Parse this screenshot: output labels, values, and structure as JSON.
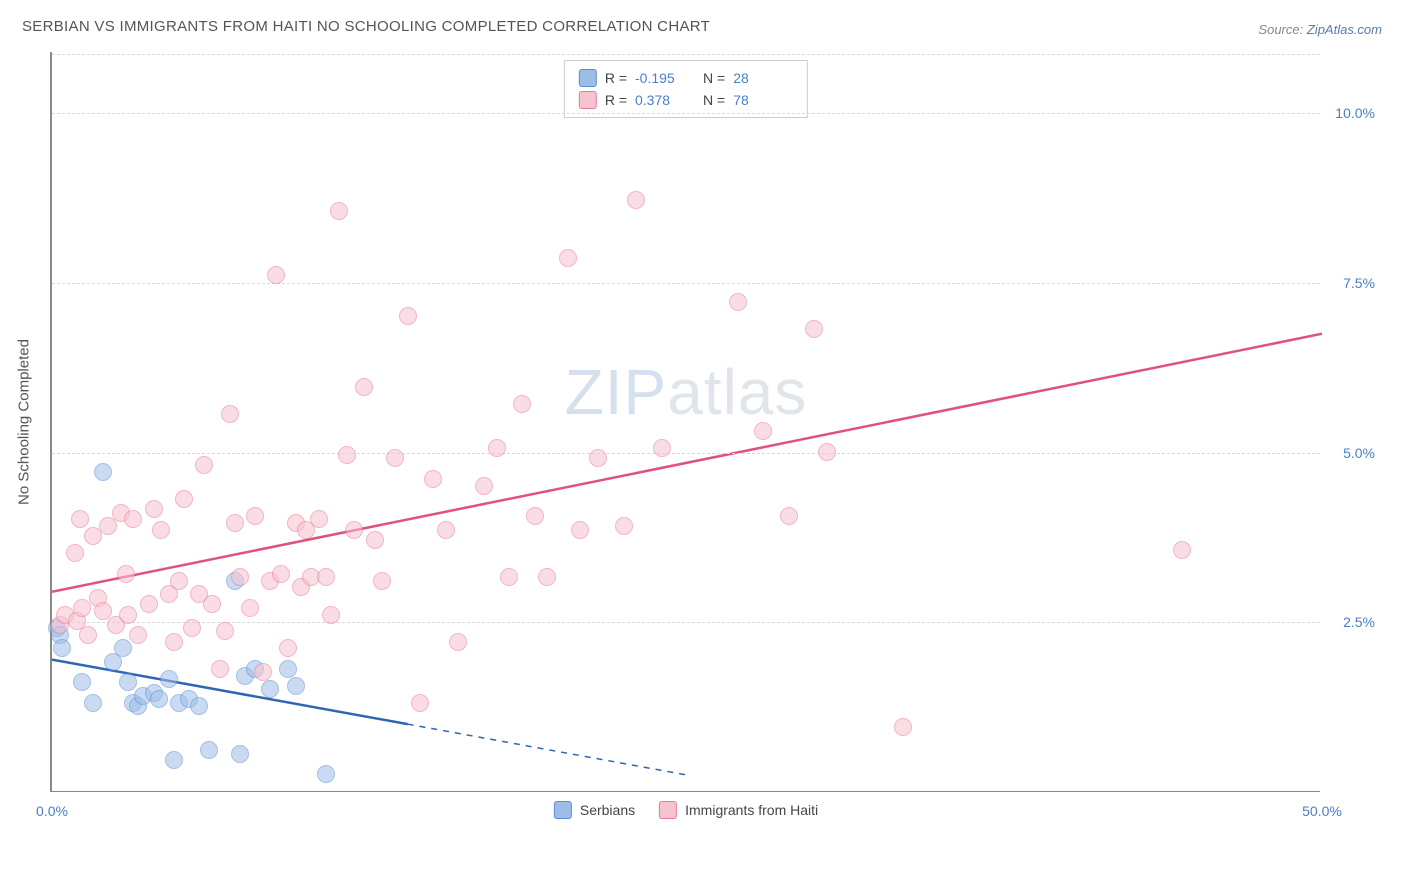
{
  "title": "SERBIAN VS IMMIGRANTS FROM HAITI NO SCHOOLING COMPLETED CORRELATION CHART",
  "source_label": "Source:",
  "source_link": "ZipAtlas.com",
  "watermark": {
    "bold": "ZIP",
    "thin": "atlas"
  },
  "chart": {
    "type": "scatter",
    "y_axis_title": "No Schooling Completed",
    "xlim": [
      0,
      50
    ],
    "ylim": [
      0,
      10.9
    ],
    "x_ticks": [
      0,
      50
    ],
    "x_tick_labels": [
      "0.0%",
      "50.0%"
    ],
    "y_ticks": [
      2.5,
      5.0,
      7.5,
      10.0
    ],
    "y_tick_labels": [
      "2.5%",
      "5.0%",
      "7.5%",
      "10.0%"
    ],
    "grid_color": "#d8d8d8",
    "background_color": "#ffffff",
    "axis_color": "#888888",
    "tick_label_color": "#4a7fc7",
    "marker_radius": 9,
    "marker_opacity": 0.55,
    "series": [
      {
        "name": "Serbians",
        "color_fill": "#9dbde8",
        "color_stroke": "#5b8ed1",
        "R": "-0.195",
        "N": "28",
        "trend": {
          "x1": 0,
          "y1": 1.95,
          "x2": 14,
          "y2": 1.0,
          "dash_to_x": 25,
          "dash_to_y": 0.25,
          "color": "#2d66b5",
          "width": 2.5
        },
        "points": [
          [
            0.2,
            2.4
          ],
          [
            0.3,
            2.3
          ],
          [
            0.4,
            2.1
          ],
          [
            2.0,
            4.7
          ],
          [
            2.4,
            1.9
          ],
          [
            1.2,
            1.6
          ],
          [
            1.6,
            1.3
          ],
          [
            2.8,
            2.1
          ],
          [
            3.0,
            1.6
          ],
          [
            3.2,
            1.3
          ],
          [
            3.4,
            1.25
          ],
          [
            3.6,
            1.4
          ],
          [
            4.0,
            1.45
          ],
          [
            4.2,
            1.35
          ],
          [
            4.6,
            1.65
          ],
          [
            5.0,
            1.3
          ],
          [
            5.4,
            1.35
          ],
          [
            5.8,
            1.25
          ],
          [
            6.2,
            0.6
          ],
          [
            7.2,
            3.1
          ],
          [
            7.6,
            1.7
          ],
          [
            8.0,
            1.8
          ],
          [
            8.6,
            1.5
          ],
          [
            9.3,
            1.8
          ],
          [
            9.6,
            1.55
          ],
          [
            4.8,
            0.45
          ],
          [
            7.4,
            0.55
          ],
          [
            10.8,
            0.25
          ]
        ]
      },
      {
        "name": "Immigrants from Haiti",
        "color_fill": "#f6c3ce",
        "color_stroke": "#e87a96",
        "R": "0.378",
        "N": "78",
        "trend": {
          "x1": 0,
          "y1": 2.95,
          "x2": 50,
          "y2": 6.75,
          "color": "#e0517c",
          "width": 2.5
        },
        "points": [
          [
            0.3,
            2.45
          ],
          [
            0.5,
            2.6
          ],
          [
            0.9,
            3.5
          ],
          [
            1.0,
            2.5
          ],
          [
            1.2,
            2.7
          ],
          [
            1.4,
            2.3
          ],
          [
            1.6,
            3.75
          ],
          [
            1.8,
            2.85
          ],
          [
            2.0,
            2.65
          ],
          [
            2.2,
            3.9
          ],
          [
            2.5,
            2.45
          ],
          [
            2.7,
            4.1
          ],
          [
            3.0,
            2.6
          ],
          [
            3.2,
            4.0
          ],
          [
            3.4,
            2.3
          ],
          [
            3.8,
            2.75
          ],
          [
            4.0,
            4.15
          ],
          [
            4.3,
            3.85
          ],
          [
            4.6,
            2.9
          ],
          [
            5.0,
            3.1
          ],
          [
            5.2,
            4.3
          ],
          [
            5.5,
            2.4
          ],
          [
            6.0,
            4.8
          ],
          [
            6.3,
            2.75
          ],
          [
            6.6,
            1.8
          ],
          [
            7.0,
            5.55
          ],
          [
            7.2,
            3.95
          ],
          [
            7.4,
            3.15
          ],
          [
            7.8,
            2.7
          ],
          [
            8.0,
            4.05
          ],
          [
            8.3,
            1.75
          ],
          [
            8.6,
            3.1
          ],
          [
            8.8,
            7.6
          ],
          [
            9.0,
            3.2
          ],
          [
            9.3,
            2.1
          ],
          [
            9.6,
            3.95
          ],
          [
            9.8,
            3.0
          ],
          [
            10.0,
            3.85
          ],
          [
            10.2,
            3.15
          ],
          [
            10.5,
            4.0
          ],
          [
            10.8,
            3.15
          ],
          [
            11.0,
            2.6
          ],
          [
            11.3,
            8.55
          ],
          [
            11.6,
            4.95
          ],
          [
            11.9,
            3.85
          ],
          [
            12.3,
            5.95
          ],
          [
            12.7,
            3.7
          ],
          [
            13.0,
            3.1
          ],
          [
            13.5,
            4.9
          ],
          [
            14.0,
            7.0
          ],
          [
            14.5,
            1.3
          ],
          [
            15.0,
            4.6
          ],
          [
            15.5,
            3.85
          ],
          [
            16.0,
            2.2
          ],
          [
            17.0,
            4.5
          ],
          [
            17.5,
            5.05
          ],
          [
            18.0,
            3.15
          ],
          [
            18.5,
            5.7
          ],
          [
            19.0,
            4.05
          ],
          [
            19.5,
            3.15
          ],
          [
            20.3,
            7.85
          ],
          [
            20.8,
            3.85
          ],
          [
            21.5,
            4.9
          ],
          [
            22.5,
            3.9
          ],
          [
            23.0,
            8.7
          ],
          [
            24.0,
            5.05
          ],
          [
            27.0,
            7.2
          ],
          [
            28.0,
            5.3
          ],
          [
            29.0,
            4.05
          ],
          [
            30.0,
            6.8
          ],
          [
            30.5,
            5.0
          ],
          [
            33.5,
            0.95
          ],
          [
            44.5,
            3.55
          ],
          [
            5.8,
            2.9
          ],
          [
            6.8,
            2.35
          ],
          [
            4.8,
            2.2
          ],
          [
            2.9,
            3.2
          ],
          [
            1.1,
            4.0
          ]
        ]
      }
    ],
    "legend_top": {
      "R_label": "R =",
      "N_label": "N ="
    },
    "legend_bottom": [
      {
        "label": "Serbians",
        "fill": "#9dbde8",
        "stroke": "#5b8ed1"
      },
      {
        "label": "Immigrants from Haiti",
        "fill": "#f6c3ce",
        "stroke": "#e87a96"
      }
    ]
  }
}
